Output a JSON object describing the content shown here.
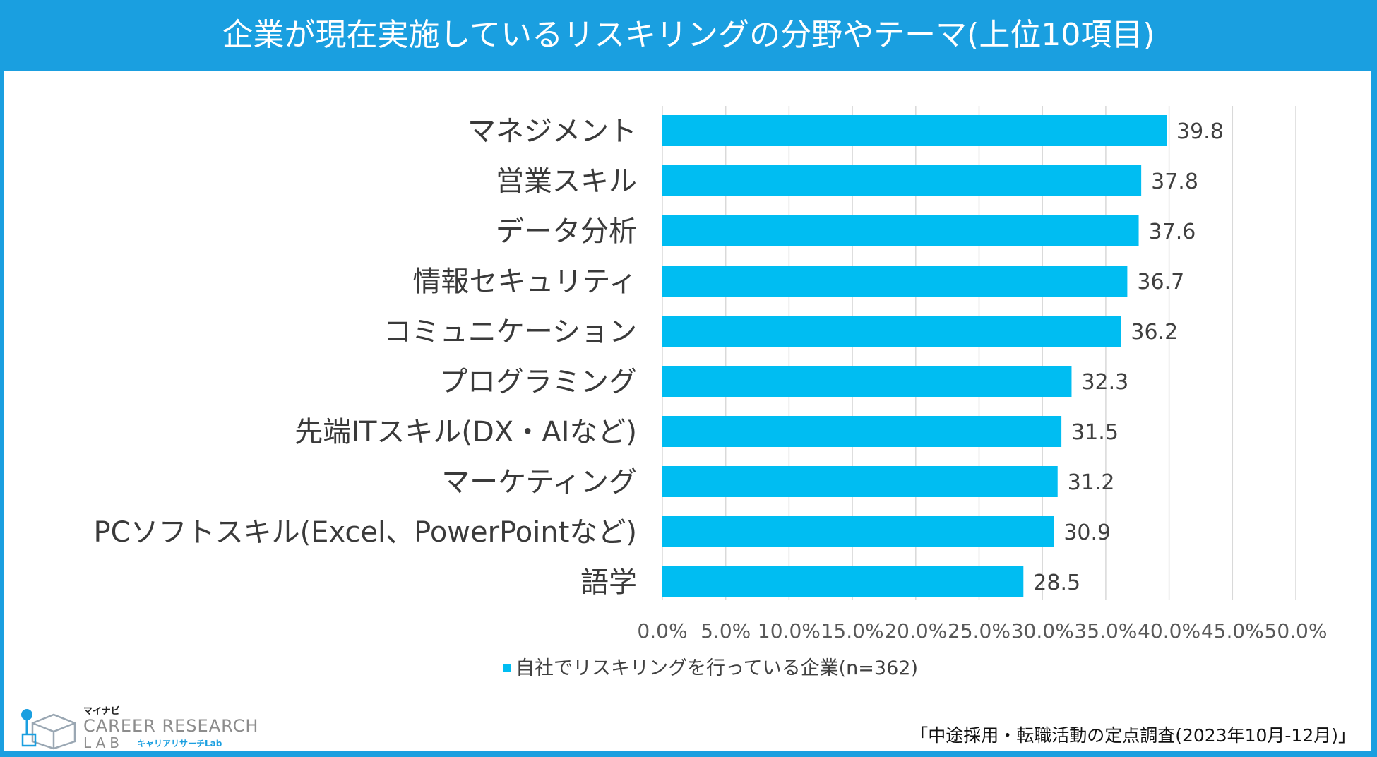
{
  "title": "企業が現在実施しているリスキリングの分野やテーマ(上位10項目)",
  "chart_data": {
    "type": "bar",
    "orientation": "horizontal",
    "categories": [
      "マネジメント",
      "営業スキル",
      "データ分析",
      "情報セキュリティ",
      "コミュニケーション",
      "プログラミング",
      "先端ITスキル(DX・AIなど)",
      "マーケティング",
      "PCソフトスキル(Excel、PowerPointなど)",
      "語学"
    ],
    "values": [
      39.8,
      37.8,
      37.6,
      36.7,
      36.2,
      32.3,
      31.5,
      31.2,
      30.9,
      28.5
    ],
    "value_labels": [
      "39.8",
      "37.8",
      "37.6",
      "36.7",
      "36.2",
      "32.3",
      "31.5",
      "31.2",
      "30.9",
      "28.5"
    ],
    "xlim": [
      0,
      50
    ],
    "xticks": [
      0,
      5,
      10,
      15,
      20,
      25,
      30,
      35,
      40,
      45,
      50
    ],
    "xtick_labels": [
      "0.0%",
      "5.0%",
      "10.0%",
      "15.0%",
      "20.0%",
      "25.0%",
      "30.0%",
      "35.0%",
      "40.0%",
      "45.0%",
      "50.0%"
    ],
    "grid": true,
    "series": [
      {
        "name": "自社でリスキリングを行っている企業(n=362)",
        "color": "#00bdf2"
      }
    ]
  },
  "legend": {
    "label": "自社でリスキリングを行っている企業(n=362)"
  },
  "source": "「中途採用・転職活動の定点調査(2023年10月-12月)」",
  "logo": {
    "top": "マイナビ",
    "line1": "CAREER RESEARCH",
    "line2": "LAB",
    "sub": "キャリアリサーチLab"
  },
  "colors": {
    "frame": "#1a9fe0",
    "bar": "#00bdf2",
    "grid": "#d9d9d9"
  }
}
